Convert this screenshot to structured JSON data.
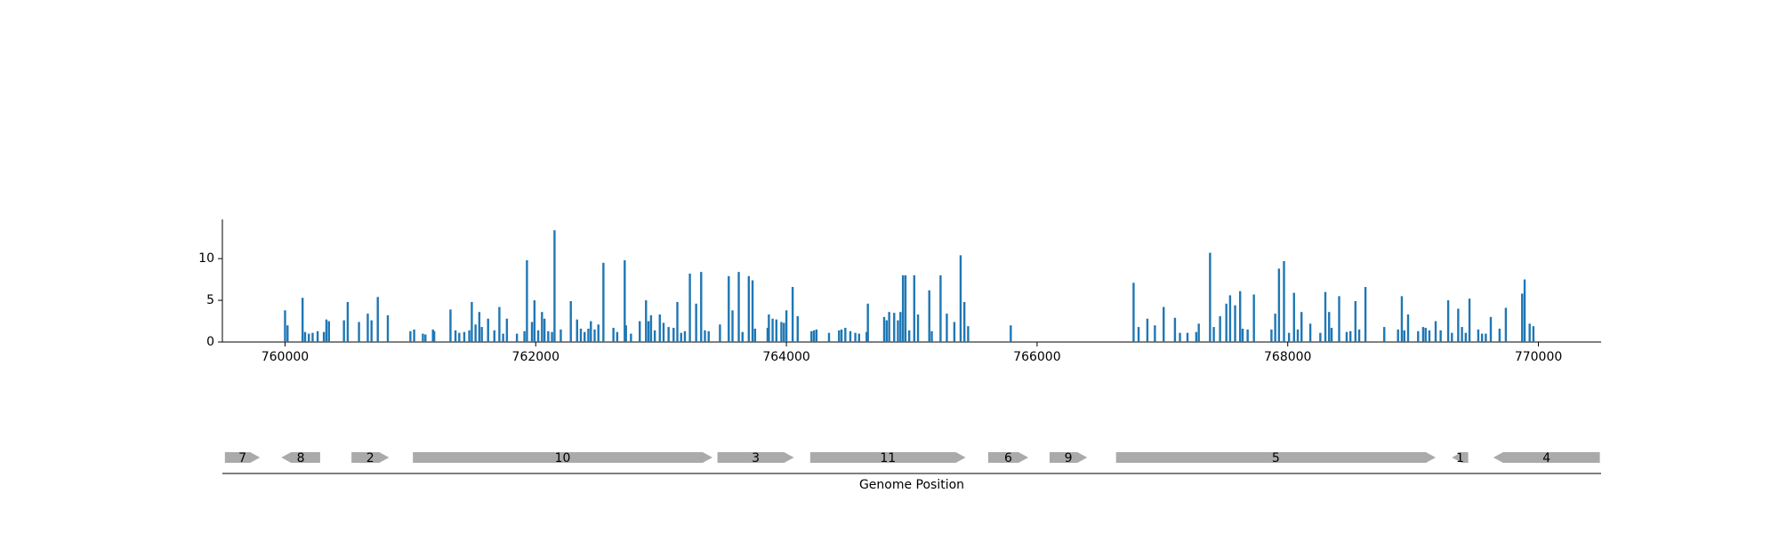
{
  "chart_data": {
    "type": "bar",
    "color": "#1f77b4",
    "x": [
      760000,
      760020,
      760140,
      760160,
      760190,
      760220,
      760260,
      760310,
      760330,
      760350,
      760470,
      760500,
      760590,
      760660,
      760690,
      760740,
      760820,
      761000,
      761030,
      761100,
      761120,
      761180,
      761190,
      761320,
      761360,
      761390,
      761430,
      761470,
      761490,
      761520,
      761550,
      761570,
      761620,
      761670,
      761710,
      761740,
      761770,
      761850,
      761910,
      761930,
      761970,
      761990,
      762020,
      762050,
      762070,
      762100,
      762130,
      762150,
      762200,
      762280,
      762330,
      762360,
      762390,
      762420,
      762440,
      762470,
      762500,
      762540,
      762620,
      762650,
      762710,
      762720,
      762760,
      762830,
      762880,
      762900,
      762920,
      762950,
      762990,
      763020,
      763060,
      763100,
      763130,
      763160,
      763190,
      763230,
      763280,
      763320,
      763350,
      763380,
      763470,
      763540,
      763570,
      763620,
      763650,
      763700,
      763730,
      763750,
      763850,
      763860,
      763890,
      763920,
      763960,
      763980,
      764000,
      764050,
      764090,
      764200,
      764220,
      764240,
      764340,
      764420,
      764440,
      764470,
      764510,
      764550,
      764580,
      764640,
      764650,
      764780,
      764800,
      764820,
      764860,
      764890,
      764910,
      764930,
      764950,
      764980,
      765020,
      765050,
      765140,
      765160,
      765230,
      765280,
      765340,
      765390,
      765420,
      765450,
      765790,
      766770,
      766810,
      766880,
      766940,
      767010,
      767100,
      767140,
      767200,
      767270,
      767290,
      767380,
      767410,
      767460,
      767510,
      767540,
      767580,
      767620,
      767640,
      767680,
      767730,
      767870,
      767900,
      767930,
      767970,
      768010,
      768050,
      768080,
      768110,
      768180,
      768260,
      768300,
      768330,
      768350,
      768410,
      768470,
      768500,
      768540,
      768570,
      768620,
      768770,
      768880,
      768910,
      768930,
      768960,
      769040,
      769080,
      769100,
      769130,
      769180,
      769220,
      769280,
      769310,
      769360,
      769390,
      769420,
      769450,
      769520,
      769550,
      769580,
      769620,
      769690,
      769740,
      769870,
      769890,
      769930,
      769960
    ],
    "values": [
      3.8,
      2.0,
      5.3,
      1.2,
      1.0,
      1.1,
      1.3,
      1.2,
      2.7,
      2.5,
      2.6,
      4.8,
      2.4,
      3.4,
      2.6,
      5.4,
      3.2,
      1.3,
      1.5,
      1.0,
      0.9,
      1.5,
      1.3,
      3.9,
      1.4,
      1.1,
      1.2,
      1.4,
      4.8,
      2.1,
      3.6,
      1.8,
      2.8,
      1.4,
      4.2,
      1.0,
      2.8,
      1.0,
      1.3,
      9.8,
      2.4,
      5.0,
      1.4,
      3.6,
      2.8,
      1.3,
      1.2,
      13.4,
      1.5,
      4.9,
      2.7,
      1.6,
      1.2,
      1.6,
      2.5,
      1.5,
      2.1,
      9.5,
      1.7,
      1.2,
      9.8,
      2.0,
      1.0,
      2.5,
      5.0,
      2.5,
      3.2,
      1.4,
      3.3,
      2.3,
      1.8,
      1.7,
      4.8,
      1.1,
      1.3,
      8.2,
      4.6,
      8.4,
      1.4,
      1.3,
      2.1,
      7.9,
      3.8,
      8.4,
      1.2,
      7.9,
      7.4,
      1.6,
      1.7,
      3.3,
      2.8,
      2.7,
      2.4,
      2.3,
      3.8,
      6.6,
      3.1,
      1.3,
      1.4,
      1.5,
      1.1,
      1.4,
      1.5,
      1.7,
      1.3,
      1.1,
      1.0,
      1.2,
      4.6,
      3.0,
      2.6,
      3.6,
      3.5,
      2.6,
      3.6,
      8.0,
      8.0,
      1.4,
      8.0,
      3.3,
      6.2,
      1.3,
      8.0,
      3.4,
      2.4,
      10.4,
      4.8,
      1.9,
      2.0,
      7.1,
      1.8,
      2.8,
      2.0,
      4.2,
      2.9,
      1.1,
      1.1,
      1.2,
      2.2,
      10.7,
      1.8,
      3.1,
      4.6,
      5.6,
      4.4,
      6.1,
      1.6,
      1.5,
      5.7,
      1.5,
      3.4,
      8.8,
      9.7,
      1.1,
      5.9,
      1.5,
      3.6,
      2.2,
      1.1,
      6.0,
      3.6,
      1.7,
      5.5,
      1.2,
      1.3,
      4.9,
      1.5,
      6.6,
      1.8,
      1.5,
      5.5,
      1.4,
      3.3,
      1.3,
      1.8,
      1.7,
      1.4,
      2.5,
      1.4,
      5.0,
      1.1,
      4.0,
      1.8,
      1.1,
      5.2,
      1.5,
      1.0,
      1.0,
      3.0,
      1.6,
      4.1,
      5.8,
      7.5,
      2.2,
      1.9
    ],
    "xlim": [
      759500,
      770500
    ],
    "ylim": [
      0,
      14.7
    ],
    "xticks": [
      760000,
      762000,
      764000,
      766000,
      768000,
      770000
    ],
    "yticks": [
      0,
      5,
      10
    ],
    "xlabel": "Genome Position",
    "gene_color": "#aaaaaa",
    "genes": [
      {
        "label": "7",
        "start": 759520,
        "end": 759800,
        "strand": "+"
      },
      {
        "label": "8",
        "start": 759970,
        "end": 760280,
        "strand": "-"
      },
      {
        "label": "2",
        "start": 760530,
        "end": 760830,
        "strand": "+"
      },
      {
        "label": "10",
        "start": 761020,
        "end": 763410,
        "strand": "+"
      },
      {
        "label": "3",
        "start": 763450,
        "end": 764060,
        "strand": "+"
      },
      {
        "label": "11",
        "start": 764190,
        "end": 765430,
        "strand": "+"
      },
      {
        "label": "6",
        "start": 765610,
        "end": 765930,
        "strand": "+"
      },
      {
        "label": "9",
        "start": 766100,
        "end": 766400,
        "strand": "+"
      },
      {
        "label": "5",
        "start": 766630,
        "end": 769180,
        "strand": "+"
      },
      {
        "label": "1",
        "start": 769310,
        "end": 769440,
        "strand": "-"
      },
      {
        "label": "4",
        "start": 769640,
        "end": 770490,
        "strand": "-"
      }
    ]
  }
}
